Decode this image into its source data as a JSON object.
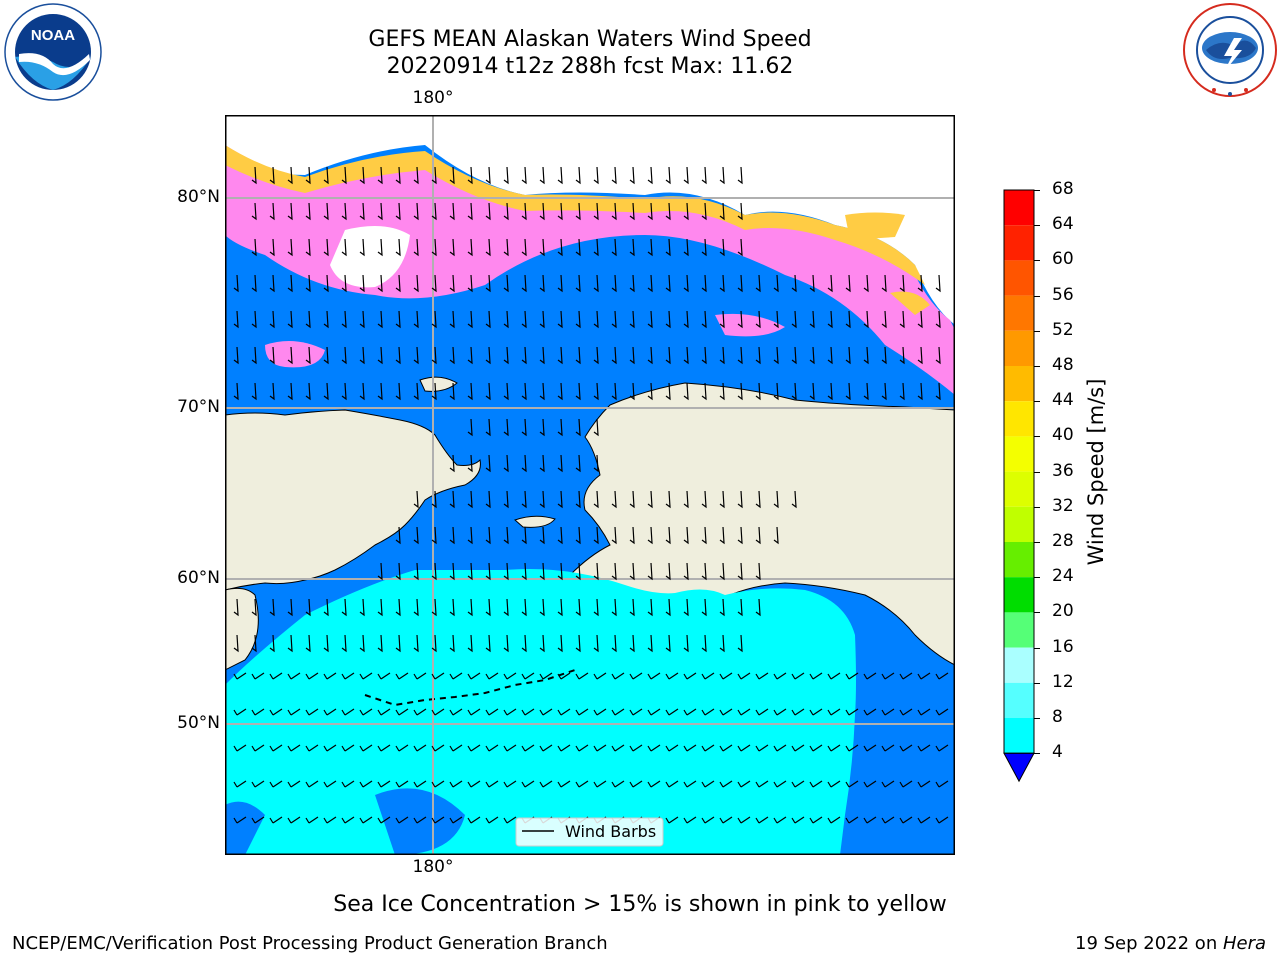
{
  "title": {
    "line1": "GEFS MEAN Alaskan Waters Wind Speed",
    "line2": "20220914 t12z 288h fcst   Max: 11.62"
  },
  "logos": {
    "left": {
      "icon": "noaa-logo",
      "text": "NOAA",
      "ring_text": "NATIONAL OCEANIC AND ATMOSPHERIC ADMINISTRATION · U.S. DEPARTMENT OF COMMERCE"
    },
    "right": {
      "icon": "nws-logo",
      "ring_text": "NATIONAL WEATHER SERVICE"
    }
  },
  "map": {
    "lon_top": "180°",
    "lon_bottom": "180°",
    "lat_labels": [
      "80°N",
      "70°N",
      "60°N",
      "50°N"
    ],
    "legend_label": "Wind Barbs",
    "colors": {
      "land": "#efeedd",
      "wind_4_8": "#0080ff",
      "wind_8_12": "#00ffff",
      "ice_low": "#ff55ff",
      "ice_mid": "#ffaa88",
      "ice_high": "#ffdd22",
      "coast": "#000000",
      "grid": "#b0b0b0"
    }
  },
  "colorbar": {
    "label": "Wind Speed [m/s]",
    "ticks": [
      "68",
      "64",
      "60",
      "56",
      "52",
      "48",
      "44",
      "40",
      "36",
      "32",
      "28",
      "24",
      "20",
      "16",
      "12",
      "8",
      "4"
    ],
    "colors": [
      "#ff0000",
      "#ff2200",
      "#ff5500",
      "#ff7700",
      "#ff9900",
      "#ffbb00",
      "#ffe600",
      "#f4ff00",
      "#ddff00",
      "#c0ff00",
      "#66ee00",
      "#00dd00",
      "#55ff77",
      "#aaffff",
      "#55ffff",
      "#00ffff",
      "#0080ff"
    ],
    "extend_color": "#0000ff"
  },
  "note": "Sea Ice Concentration > 15% is shown in pink to yellow",
  "footer": {
    "left": "NCEP/EMC/Verification Post Processing Product Generation Branch",
    "right_prefix": "19 Sep 2022 on ",
    "right_host": "Hera"
  }
}
